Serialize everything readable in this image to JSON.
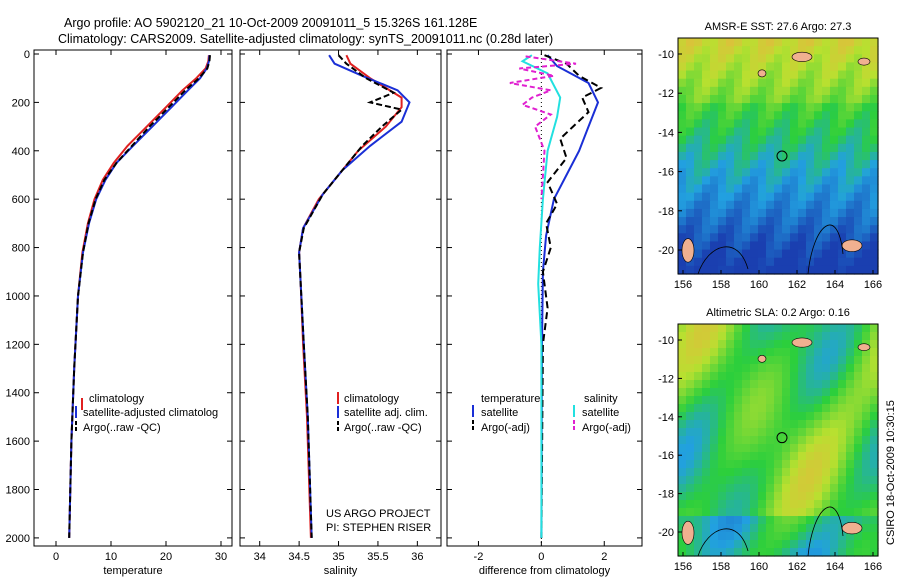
{
  "header": {
    "line1": "Argo profile: AO 5902120_21 10-Oct-2009 20091011_5 15.326S 161.128E",
    "line2": "Climatology: CARS2009. Satellite-adjusted climatology: synTS_20091011.nc (0.28d later)"
  },
  "side_label": "CSIRO 18-Oct-2009 10:30:15",
  "colors": {
    "red": "#e02020",
    "blue": "#1a2fd6",
    "black": "#000000",
    "cyan": "#22e0e0",
    "magenta": "#e020d0",
    "map_low": "#1a3fb0",
    "map_mid": "#2ccf3c",
    "map_high": "#e6d040",
    "land": "#f0b090"
  },
  "chart_data": [
    {
      "type": "line",
      "xlabel": "temperature",
      "ylim": [
        2050,
        0
      ],
      "xlim": [
        -4,
        32
      ],
      "xticks": [
        0,
        10,
        20,
        30
      ],
      "yticks": [
        0,
        200,
        400,
        600,
        800,
        1000,
        1200,
        1400,
        1600,
        1800,
        2000
      ],
      "legend": [
        "climatology",
        "satellite-adjusted climatolog",
        "Argo(..raw -QC)"
      ],
      "series": [
        {
          "name": "climatology",
          "color": "red",
          "dash": "",
          "points": [
            [
              27.8,
              5
            ],
            [
              27.7,
              30
            ],
            [
              27.2,
              60
            ],
            [
              25.5,
              100
            ],
            [
              23,
              150
            ],
            [
              20,
              220
            ],
            [
              16.5,
              300
            ],
            [
              13,
              380
            ],
            [
              10.5,
              450
            ],
            [
              8.5,
              520
            ],
            [
              7,
              600
            ],
            [
              5.8,
              700
            ],
            [
              4.8,
              820
            ],
            [
              4,
              1000
            ],
            [
              3.3,
              1300
            ],
            [
              2.8,
              1600
            ],
            [
              2.4,
              2000
            ]
          ]
        },
        {
          "name": "satellite-adjusted climatolog",
          "color": "blue",
          "dash": "",
          "points": [
            [
              27.9,
              5
            ],
            [
              27.8,
              30
            ],
            [
              27.4,
              60
            ],
            [
              26.2,
              100
            ],
            [
              24,
              150
            ],
            [
              21,
              220
            ],
            [
              17.5,
              300
            ],
            [
              14,
              380
            ],
            [
              11,
              450
            ],
            [
              9,
              520
            ],
            [
              7.3,
              600
            ],
            [
              6,
              700
            ],
            [
              4.9,
              820
            ],
            [
              4,
              1000
            ],
            [
              3.3,
              1300
            ],
            [
              2.8,
              1600
            ],
            [
              2.4,
              2000
            ]
          ]
        },
        {
          "name": "Argo(..raw -QC)",
          "color": "black",
          "dash": "6,3",
          "points": [
            [
              28,
              5
            ],
            [
              27.9,
              30
            ],
            [
              27.5,
              60
            ],
            [
              26,
              100
            ],
            [
              23.5,
              150
            ],
            [
              20.5,
              220
            ],
            [
              17,
              300
            ],
            [
              13.8,
              380
            ],
            [
              11,
              450
            ],
            [
              8.8,
              520
            ],
            [
              7.2,
              600
            ],
            [
              5.9,
              700
            ],
            [
              4.9,
              820
            ],
            [
              4,
              1000
            ],
            [
              3.3,
              1300
            ],
            [
              2.8,
              1600
            ],
            [
              2.4,
              2000
            ]
          ]
        }
      ]
    },
    {
      "type": "line",
      "xlabel": "salinity",
      "ylim": [
        2050,
        0
      ],
      "xlim": [
        33.75,
        36.3
      ],
      "xticks": [
        34,
        34.5,
        35,
        35.5,
        36
      ],
      "legend": [
        "climatology",
        "satellite adj. clim.",
        "Argo(..raw -QC)"
      ],
      "annotation": [
        "US ARGO PROJECT",
        "PI: STEPHEN RISER"
      ],
      "series": [
        {
          "name": "climatology",
          "color": "red",
          "dash": "",
          "points": [
            [
              35.1,
              5
            ],
            [
              35.15,
              40
            ],
            [
              35.4,
              100
            ],
            [
              35.8,
              180
            ],
            [
              35.8,
              220
            ],
            [
              35.6,
              300
            ],
            [
              35.25,
              400
            ],
            [
              35,
              500
            ],
            [
              34.75,
              600
            ],
            [
              34.55,
              720
            ],
            [
              34.5,
              820
            ],
            [
              34.52,
              950
            ],
            [
              34.55,
              1200
            ],
            [
              34.6,
              1500
            ],
            [
              34.65,
              2000
            ]
          ]
        },
        {
          "name": "satellite adj. clim.",
          "color": "blue",
          "dash": "",
          "points": [
            [
              34.88,
              5
            ],
            [
              34.95,
              40
            ],
            [
              35.3,
              90
            ],
            [
              35.75,
              150
            ],
            [
              35.9,
              200
            ],
            [
              35.8,
              280
            ],
            [
              35.4,
              380
            ],
            [
              35.05,
              480
            ],
            [
              34.8,
              580
            ],
            [
              34.55,
              720
            ],
            [
              34.5,
              820
            ],
            [
              34.52,
              950
            ],
            [
              34.56,
              1200
            ],
            [
              34.61,
              1500
            ],
            [
              34.66,
              2000
            ]
          ]
        },
        {
          "name": "Argo(..raw -QC)",
          "color": "black",
          "dash": "6,3",
          "points": [
            [
              35,
              5
            ],
            [
              35.1,
              40
            ],
            [
              35.35,
              100
            ],
            [
              35.7,
              160
            ],
            [
              35.4,
              200
            ],
            [
              35.8,
              230
            ],
            [
              35.55,
              300
            ],
            [
              35.3,
              380
            ],
            [
              35.05,
              480
            ],
            [
              34.8,
              580
            ],
            [
              34.56,
              720
            ],
            [
              34.5,
              820
            ],
            [
              34.52,
              950
            ],
            [
              34.56,
              1200
            ],
            [
              34.61,
              1500
            ],
            [
              34.66,
              2000
            ]
          ]
        }
      ]
    },
    {
      "type": "line",
      "xlabel": "difference from climatology",
      "ylim": [
        2050,
        0
      ],
      "xlim": [
        -3,
        3.2
      ],
      "xticks": [
        -2,
        0,
        2
      ],
      "legend_temperature_header": "temperature",
      "legend_salinity_header": "salinity",
      "legend": [
        "satellite",
        "Argo(-adj)",
        "satellite",
        "Argo(-adj)"
      ],
      "series": [
        {
          "name": "temperature satellite",
          "color": "blue",
          "dash": "",
          "points": [
            [
              0.2,
              5
            ],
            [
              0.5,
              50
            ],
            [
              1.5,
              120
            ],
            [
              1.8,
              200
            ],
            [
              1.5,
              300
            ],
            [
              1.2,
              400
            ],
            [
              0.8,
              500
            ],
            [
              0.4,
              600
            ],
            [
              0.15,
              750
            ],
            [
              0.05,
              900
            ],
            [
              0.02,
              1200
            ],
            [
              0,
              2000
            ]
          ]
        },
        {
          "name": "temperature Argo(-adj)",
          "color": "black",
          "dash": "7,4",
          "points": [
            [
              0.1,
              5
            ],
            [
              0.8,
              40
            ],
            [
              1.2,
              90
            ],
            [
              1.9,
              140
            ],
            [
              1.3,
              180
            ],
            [
              1.5,
              240
            ],
            [
              0.6,
              350
            ],
            [
              0.8,
              430
            ],
            [
              0.2,
              530
            ],
            [
              0.5,
              620
            ],
            [
              0.15,
              700
            ],
            [
              0.3,
              800
            ],
            [
              0.05,
              900
            ],
            [
              0.2,
              1050
            ],
            [
              0.05,
              1200
            ],
            [
              0,
              2000
            ]
          ]
        },
        {
          "name": "salinity satellite",
          "color": "cyan",
          "dash": "",
          "points": [
            [
              -0.3,
              5
            ],
            [
              -0.6,
              30
            ],
            [
              0.2,
              80
            ],
            [
              0.6,
              180
            ],
            [
              0.5,
              260
            ],
            [
              0.2,
              400
            ],
            [
              0.05,
              600
            ],
            [
              -0.05,
              800
            ],
            [
              -0.1,
              950
            ],
            [
              0,
              1200
            ],
            [
              0,
              2000
            ]
          ]
        },
        {
          "name": "salinity Argo(-adj)",
          "color": "magenta",
          "dash": "5,3",
          "points": [
            [
              -0.5,
              10
            ],
            [
              1.1,
              40
            ],
            [
              -0.7,
              60
            ],
            [
              0.4,
              90
            ],
            [
              -1.0,
              120
            ],
            [
              0.3,
              150
            ],
            [
              -0.3,
              180
            ],
            [
              -0.6,
              210
            ],
            [
              0.3,
              250
            ],
            [
              -0.2,
              300
            ],
            [
              0.1,
              400
            ],
            [
              0,
              600
            ]
          ]
        }
      ]
    }
  ],
  "maps": [
    {
      "title": "AMSR-E SST: 27.6 Argo: 27.3",
      "xticks": [
        "156",
        "158",
        "160",
        "162",
        "164",
        "166"
      ],
      "yticks": [
        "-10",
        "-12",
        "-14",
        "-16",
        "-18",
        "-20"
      ],
      "kind": "sst"
    },
    {
      "title": "Altimetric SLA: 0.2 Argo: 0.16",
      "xticks": [
        "156",
        "158",
        "160",
        "162",
        "164",
        "166"
      ],
      "yticks": [
        "-10",
        "-12",
        "-14",
        "-16",
        "-18",
        "-20"
      ],
      "kind": "sla"
    }
  ]
}
